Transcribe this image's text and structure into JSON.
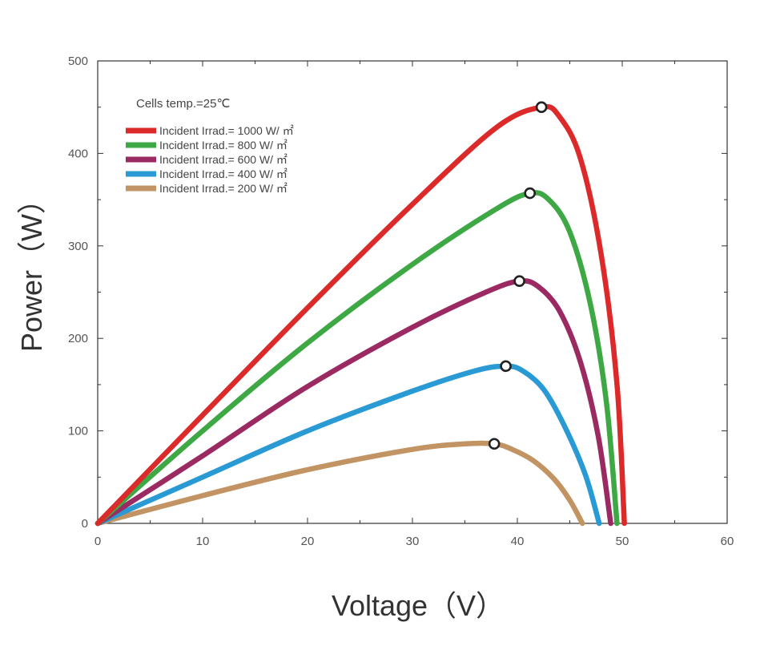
{
  "chart_data": {
    "type": "line",
    "title": "",
    "xlabel": "Voltage（V）",
    "ylabel": "Power（W）",
    "xlim": [
      0,
      60
    ],
    "ylim": [
      0,
      500
    ],
    "x_ticks": [
      0,
      10,
      20,
      30,
      40,
      50,
      60
    ],
    "y_ticks": [
      0,
      100,
      200,
      300,
      400,
      500
    ],
    "grid": false,
    "legend_position": "top-left",
    "annotation": "Cells temp.=25℃",
    "series": [
      {
        "name": "Incident Irrad.= 1000 W/ ㎡",
        "color": "#dc2a2a",
        "mpp": [
          42.3,
          450
        ],
        "points": [
          [
            0,
            0
          ],
          [
            10,
            117
          ],
          [
            20,
            233
          ],
          [
            30,
            345
          ],
          [
            38,
            428
          ],
          [
            42.3,
            450
          ],
          [
            44,
            440
          ],
          [
            46,
            395
          ],
          [
            48,
            290
          ],
          [
            49.5,
            150
          ],
          [
            50.2,
            0
          ]
        ]
      },
      {
        "name": "Incident Irrad.= 800 W/ ㎡",
        "color": "#3ea845",
        "mpp": [
          41.2,
          357
        ],
        "points": [
          [
            0,
            0
          ],
          [
            10,
            100
          ],
          [
            20,
            195
          ],
          [
            30,
            280
          ],
          [
            38,
            340
          ],
          [
            41.2,
            357
          ],
          [
            43,
            350
          ],
          [
            45,
            315
          ],
          [
            47,
            235
          ],
          [
            48.5,
            130
          ],
          [
            49.5,
            0
          ]
        ]
      },
      {
        "name": "Incident Irrad.= 600 W/ ㎡",
        "color": "#9b2a62",
        "mpp": [
          40.2,
          262
        ],
        "points": [
          [
            0,
            0
          ],
          [
            10,
            73
          ],
          [
            20,
            148
          ],
          [
            30,
            212
          ],
          [
            37,
            250
          ],
          [
            40.2,
            262
          ],
          [
            42,
            256
          ],
          [
            44,
            230
          ],
          [
            46,
            175
          ],
          [
            47.7,
            95
          ],
          [
            48.9,
            0
          ]
        ]
      },
      {
        "name": "Incident Irrad.= 400 W/ ㎡",
        "color": "#2a9ad4",
        "mpp": [
          38.9,
          170
        ],
        "points": [
          [
            0,
            0
          ],
          [
            10,
            50
          ],
          [
            20,
            100
          ],
          [
            30,
            143
          ],
          [
            36,
            165
          ],
          [
            38.9,
            170
          ],
          [
            40.5,
            165
          ],
          [
            42.5,
            145
          ],
          [
            44.5,
            105
          ],
          [
            46.5,
            52
          ],
          [
            47.8,
            0
          ]
        ]
      },
      {
        "name": "Incident Irrad.= 200 W/ ㎡",
        "color": "#c29463",
        "mpp": [
          37.8,
          86
        ],
        "points": [
          [
            0,
            0
          ],
          [
            10,
            30
          ],
          [
            20,
            58
          ],
          [
            30,
            80
          ],
          [
            35,
            86
          ],
          [
            37.8,
            86
          ],
          [
            39.5,
            80
          ],
          [
            41.5,
            68
          ],
          [
            43.5,
            48
          ],
          [
            45,
            25
          ],
          [
            46.2,
            0
          ]
        ]
      }
    ]
  }
}
